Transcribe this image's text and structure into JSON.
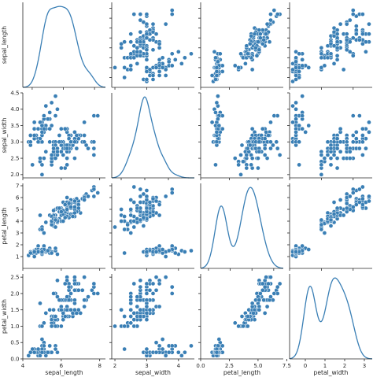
{
  "chart_data": {
    "type": "pairplot",
    "variables": [
      "sepal_length",
      "sepal_width",
      "petal_length",
      "petal_width"
    ],
    "diagonal": "kde",
    "offdiagonal": "scatter",
    "color": "#3a7fb5",
    "axes": {
      "sepal_length": {
        "lim": [
          4.0,
          8.3
        ],
        "ticks": [
          4.5,
          5.0,
          5.5,
          6.0,
          6.5,
          7.0,
          7.5,
          8.0
        ],
        "ticks_bottom": [
          4,
          6,
          8
        ]
      },
      "sepal_width": {
        "lim": [
          1.9,
          4.5
        ],
        "ticks": [
          2.0,
          2.5,
          3.0,
          3.5,
          4.0,
          4.5
        ],
        "ticks_bottom": [
          2,
          3,
          4
        ]
      },
      "petal_length": {
        "lim": [
          0.0,
          7.2
        ],
        "ticks": [
          1,
          2,
          3,
          4,
          5,
          6,
          7
        ],
        "ticks_bottom": [
          0.0,
          2.5,
          5.0,
          7.5
        ]
      },
      "petal_width": {
        "lim": [
          0.0,
          2.6
        ],
        "ticks": [
          0.0,
          0.5,
          1.0,
          1.5,
          2.0,
          2.5
        ],
        "ticks_bottom": [
          0,
          1,
          2,
          3
        ]
      }
    },
    "diag_xlim": {
      "sepal_length": [
        3.4,
        8.7
      ],
      "sepal_width": [
        1.6,
        5.1
      ],
      "petal_length": [
        -0.9,
        8.6
      ],
      "petal_width": [
        -0.8,
        3.4
      ]
    },
    "data": [
      [
        5.1,
        3.5,
        1.4,
        0.2
      ],
      [
        4.9,
        3.0,
        1.4,
        0.2
      ],
      [
        4.7,
        3.2,
        1.3,
        0.2
      ],
      [
        4.6,
        3.1,
        1.5,
        0.2
      ],
      [
        5.0,
        3.6,
        1.4,
        0.2
      ],
      [
        5.4,
        3.9,
        1.7,
        0.4
      ],
      [
        4.6,
        3.4,
        1.4,
        0.3
      ],
      [
        5.0,
        3.4,
        1.5,
        0.2
      ],
      [
        4.4,
        2.9,
        1.4,
        0.2
      ],
      [
        4.9,
        3.1,
        1.5,
        0.1
      ],
      [
        5.4,
        3.7,
        1.5,
        0.2
      ],
      [
        4.8,
        3.4,
        1.6,
        0.2
      ],
      [
        4.8,
        3.0,
        1.4,
        0.1
      ],
      [
        4.3,
        3.0,
        1.1,
        0.1
      ],
      [
        5.8,
        4.0,
        1.2,
        0.2
      ],
      [
        5.7,
        4.4,
        1.5,
        0.4
      ],
      [
        5.4,
        3.9,
        1.3,
        0.4
      ],
      [
        5.1,
        3.5,
        1.4,
        0.3
      ],
      [
        5.7,
        3.8,
        1.7,
        0.3
      ],
      [
        5.1,
        3.8,
        1.5,
        0.3
      ],
      [
        5.4,
        3.4,
        1.7,
        0.2
      ],
      [
        5.1,
        3.7,
        1.5,
        0.4
      ],
      [
        4.6,
        3.6,
        1.0,
        0.2
      ],
      [
        5.1,
        3.3,
        1.7,
        0.5
      ],
      [
        4.8,
        3.4,
        1.9,
        0.2
      ],
      [
        5.0,
        3.0,
        1.6,
        0.2
      ],
      [
        5.0,
        3.4,
        1.6,
        0.4
      ],
      [
        5.2,
        3.5,
        1.5,
        0.2
      ],
      [
        5.2,
        3.4,
        1.4,
        0.2
      ],
      [
        4.7,
        3.2,
        1.6,
        0.2
      ],
      [
        4.8,
        3.1,
        1.6,
        0.2
      ],
      [
        5.4,
        3.4,
        1.5,
        0.4
      ],
      [
        5.2,
        4.1,
        1.5,
        0.1
      ],
      [
        5.5,
        4.2,
        1.4,
        0.2
      ],
      [
        4.9,
        3.1,
        1.5,
        0.2
      ],
      [
        5.0,
        3.2,
        1.2,
        0.2
      ],
      [
        5.5,
        3.5,
        1.3,
        0.2
      ],
      [
        4.9,
        3.6,
        1.4,
        0.1
      ],
      [
        4.4,
        3.0,
        1.3,
        0.2
      ],
      [
        5.1,
        3.4,
        1.5,
        0.2
      ],
      [
        5.0,
        3.5,
        1.3,
        0.3
      ],
      [
        4.5,
        2.3,
        1.3,
        0.3
      ],
      [
        4.4,
        3.2,
        1.3,
        0.2
      ],
      [
        5.0,
        3.5,
        1.6,
        0.6
      ],
      [
        5.1,
        3.8,
        1.9,
        0.4
      ],
      [
        4.8,
        3.0,
        1.4,
        0.3
      ],
      [
        5.1,
        3.8,
        1.6,
        0.2
      ],
      [
        4.6,
        3.2,
        1.4,
        0.2
      ],
      [
        5.3,
        3.7,
        1.5,
        0.2
      ],
      [
        5.0,
        3.3,
        1.4,
        0.2
      ],
      [
        7.0,
        3.2,
        4.7,
        1.4
      ],
      [
        6.4,
        3.2,
        4.5,
        1.5
      ],
      [
        6.9,
        3.1,
        4.9,
        1.5
      ],
      [
        5.5,
        2.3,
        4.0,
        1.3
      ],
      [
        6.5,
        2.8,
        4.6,
        1.5
      ],
      [
        5.7,
        2.8,
        4.5,
        1.3
      ],
      [
        6.3,
        3.3,
        4.7,
        1.6
      ],
      [
        4.9,
        2.4,
        3.3,
        1.0
      ],
      [
        6.6,
        2.9,
        4.6,
        1.3
      ],
      [
        5.2,
        2.7,
        3.9,
        1.4
      ],
      [
        5.0,
        2.0,
        3.5,
        1.0
      ],
      [
        5.9,
        3.0,
        4.2,
        1.5
      ],
      [
        6.0,
        2.2,
        4.0,
        1.0
      ],
      [
        6.1,
        2.9,
        4.7,
        1.4
      ],
      [
        5.6,
        2.9,
        3.6,
        1.3
      ],
      [
        6.7,
        3.1,
        4.4,
        1.4
      ],
      [
        5.6,
        3.0,
        4.5,
        1.5
      ],
      [
        5.8,
        2.7,
        4.1,
        1.0
      ],
      [
        6.2,
        2.2,
        4.5,
        1.5
      ],
      [
        5.6,
        2.5,
        3.9,
        1.1
      ],
      [
        5.9,
        3.2,
        4.8,
        1.8
      ],
      [
        6.1,
        2.8,
        4.0,
        1.3
      ],
      [
        6.3,
        2.5,
        4.9,
        1.5
      ],
      [
        6.1,
        2.8,
        4.7,
        1.2
      ],
      [
        6.4,
        2.9,
        4.3,
        1.3
      ],
      [
        6.6,
        3.0,
        4.4,
        1.4
      ],
      [
        6.8,
        2.8,
        4.8,
        1.4
      ],
      [
        6.7,
        3.0,
        5.0,
        1.7
      ],
      [
        6.0,
        2.9,
        4.5,
        1.5
      ],
      [
        5.7,
        2.6,
        3.5,
        1.0
      ],
      [
        5.5,
        2.4,
        3.8,
        1.1
      ],
      [
        5.5,
        2.4,
        3.7,
        1.0
      ],
      [
        5.8,
        2.7,
        3.9,
        1.2
      ],
      [
        6.0,
        2.7,
        5.1,
        1.6
      ],
      [
        5.4,
        3.0,
        4.5,
        1.5
      ],
      [
        6.0,
        3.4,
        4.5,
        1.6
      ],
      [
        6.7,
        3.1,
        4.7,
        1.5
      ],
      [
        6.3,
        2.3,
        4.4,
        1.3
      ],
      [
        5.6,
        3.0,
        4.1,
        1.3
      ],
      [
        5.5,
        2.5,
        4.0,
        1.3
      ],
      [
        5.5,
        2.6,
        4.4,
        1.2
      ],
      [
        6.1,
        3.0,
        4.6,
        1.4
      ],
      [
        5.8,
        2.6,
        4.0,
        1.2
      ],
      [
        5.0,
        2.3,
        3.3,
        1.0
      ],
      [
        5.6,
        2.7,
        4.2,
        1.3
      ],
      [
        5.7,
        3.0,
        4.2,
        1.2
      ],
      [
        5.7,
        2.9,
        4.2,
        1.3
      ],
      [
        6.2,
        2.9,
        4.3,
        1.3
      ],
      [
        5.1,
        2.5,
        3.0,
        1.1
      ],
      [
        5.7,
        2.8,
        4.1,
        1.3
      ],
      [
        6.3,
        3.3,
        6.0,
        2.5
      ],
      [
        5.8,
        2.7,
        5.1,
        1.9
      ],
      [
        7.1,
        3.0,
        5.9,
        2.1
      ],
      [
        6.3,
        2.9,
        5.6,
        1.8
      ],
      [
        6.5,
        3.0,
        5.8,
        2.2
      ],
      [
        7.6,
        3.0,
        6.6,
        2.1
      ],
      [
        4.9,
        2.5,
        4.5,
        1.7
      ],
      [
        7.3,
        2.9,
        6.3,
        1.8
      ],
      [
        6.7,
        2.5,
        5.8,
        1.8
      ],
      [
        7.2,
        3.6,
        6.1,
        2.5
      ],
      [
        6.5,
        3.2,
        5.1,
        2.0
      ],
      [
        6.4,
        2.7,
        5.3,
        1.9
      ],
      [
        6.8,
        3.0,
        5.5,
        2.1
      ],
      [
        5.7,
        2.5,
        5.0,
        2.0
      ],
      [
        5.8,
        2.8,
        5.1,
        2.4
      ],
      [
        6.4,
        3.2,
        5.3,
        2.3
      ],
      [
        6.5,
        3.0,
        5.5,
        1.8
      ],
      [
        7.7,
        3.8,
        6.7,
        2.2
      ],
      [
        7.7,
        2.6,
        6.9,
        2.3
      ],
      [
        6.0,
        2.2,
        5.0,
        1.5
      ],
      [
        6.9,
        3.2,
        5.7,
        2.3
      ],
      [
        5.6,
        2.8,
        4.9,
        2.0
      ],
      [
        7.7,
        2.8,
        6.7,
        2.0
      ],
      [
        6.3,
        2.7,
        4.9,
        1.8
      ],
      [
        6.7,
        3.3,
        5.7,
        2.1
      ],
      [
        7.2,
        3.2,
        6.0,
        1.8
      ],
      [
        6.2,
        2.8,
        4.8,
        1.8
      ],
      [
        6.1,
        3.0,
        4.9,
        1.8
      ],
      [
        6.4,
        2.8,
        5.6,
        2.1
      ],
      [
        7.2,
        3.0,
        5.8,
        1.6
      ],
      [
        7.4,
        2.8,
        6.1,
        1.9
      ],
      [
        7.9,
        3.8,
        6.4,
        2.0
      ],
      [
        6.4,
        2.8,
        5.6,
        2.2
      ],
      [
        6.3,
        2.8,
        5.1,
        1.5
      ],
      [
        6.1,
        2.6,
        5.6,
        1.4
      ],
      [
        7.7,
        3.0,
        6.1,
        2.3
      ],
      [
        6.3,
        3.4,
        5.6,
        2.4
      ],
      [
        6.4,
        3.1,
        5.5,
        1.8
      ],
      [
        6.0,
        3.0,
        4.8,
        1.8
      ],
      [
        6.9,
        3.1,
        5.4,
        2.1
      ],
      [
        6.7,
        3.1,
        5.6,
        2.4
      ],
      [
        6.9,
        3.1,
        5.1,
        2.3
      ],
      [
        5.8,
        2.7,
        5.1,
        1.9
      ],
      [
        6.8,
        3.2,
        5.9,
        2.3
      ],
      [
        6.7,
        3.3,
        5.7,
        2.5
      ],
      [
        6.7,
        3.0,
        5.2,
        2.3
      ],
      [
        6.3,
        2.5,
        5.0,
        1.9
      ],
      [
        6.5,
        3.0,
        5.2,
        2.0
      ],
      [
        6.2,
        3.4,
        5.4,
        2.3
      ],
      [
        5.9,
        3.0,
        5.1,
        1.8
      ]
    ]
  }
}
